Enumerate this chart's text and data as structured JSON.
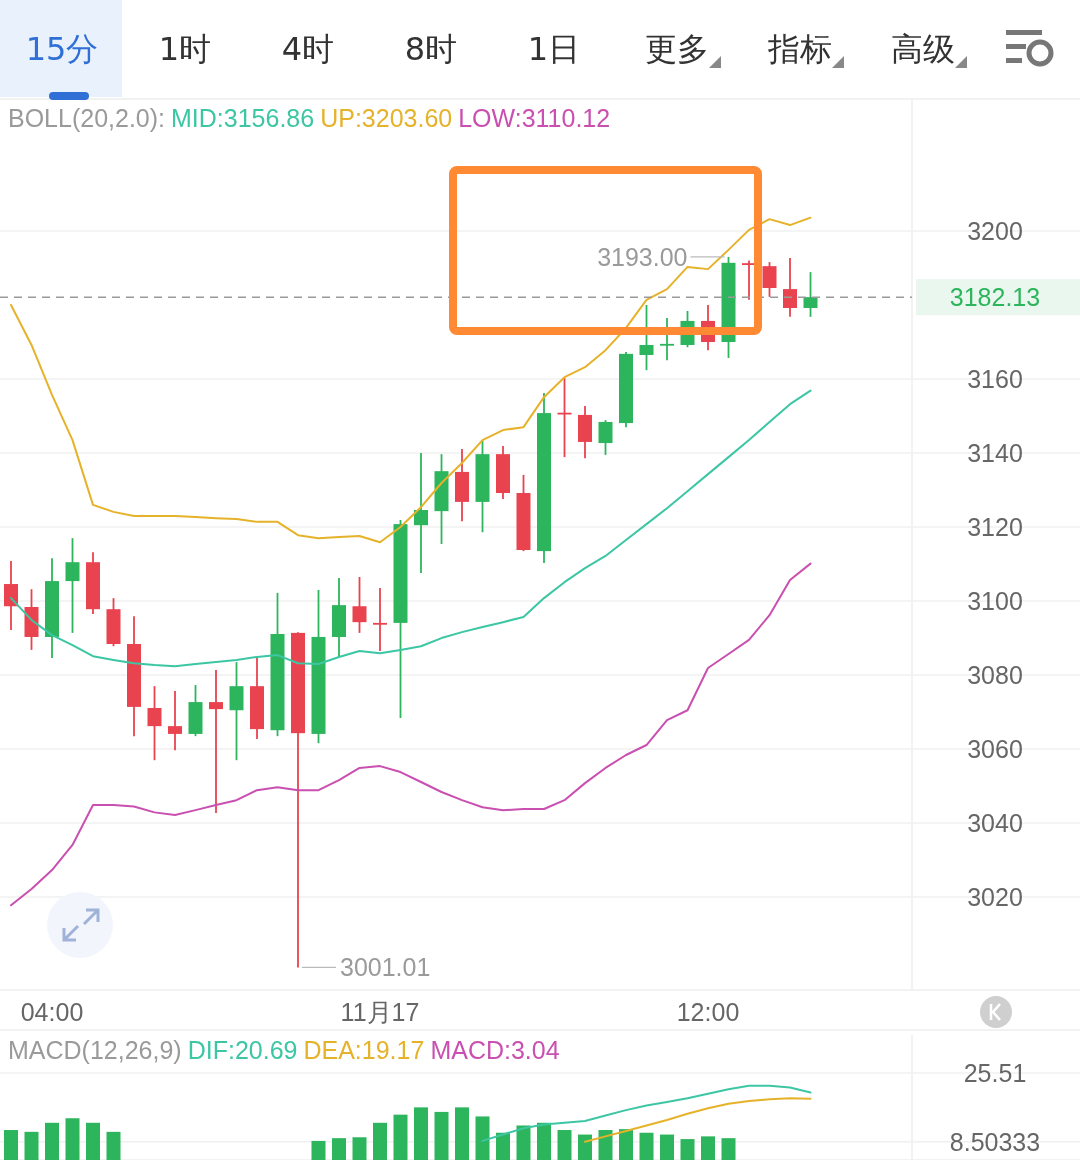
{
  "chart_data": [
    {
      "type": "candlestick",
      "categories": [
        null,
        null,
        "04:00",
        null,
        null,
        null,
        null,
        null,
        null,
        null,
        null,
        null,
        null,
        null,
        null,
        null,
        null,
        null,
        "11月17",
        null,
        null,
        null,
        null,
        null,
        null,
        null,
        null,
        null,
        null,
        null,
        null,
        null,
        null,
        null,
        "12:00",
        null,
        null,
        null,
        null,
        null
      ],
      "ohlc": [
        [
          3104.6,
          3110.8,
          3092.2,
          3098.6
        ],
        [
          3098.4,
          3103.2,
          3086.8,
          3090.3
        ],
        [
          3090.3,
          3111.6,
          3084.6,
          3105.4
        ],
        [
          3105.4,
          3117.0,
          3091.4,
          3110.5
        ],
        [
          3110.5,
          3113.2,
          3096.5,
          3097.8
        ],
        [
          3097.8,
          3100.8,
          3087.8,
          3088.4
        ],
        [
          3088.4,
          3095.9,
          3063.5,
          3071.4
        ],
        [
          3071.1,
          3077.0,
          3057.0,
          3066.2
        ],
        [
          3066.2,
          3075.7,
          3059.7,
          3064.1
        ],
        [
          3064.1,
          3077.3,
          3063.5,
          3072.7
        ],
        [
          3072.7,
          3081.4,
          3042.7,
          3070.8
        ],
        [
          3070.5,
          3083.5,
          3057.0,
          3077.0
        ],
        [
          3077.0,
          3084.9,
          3062.7,
          3065.4
        ],
        [
          3065.1,
          3102.2,
          3063.5,
          3091.1
        ],
        [
          3091.4,
          3091.6,
          3001.01,
          3064.3
        ],
        [
          3064.1,
          3103.0,
          3061.6,
          3090.3
        ],
        [
          3090.3,
          3106.2,
          3084.9,
          3098.9
        ],
        [
          3098.6,
          3106.5,
          3091.4,
          3094.3
        ],
        [
          3094.1,
          3103.5,
          3086.5,
          3094.0
        ],
        [
          3094.1,
          3121.9,
          3068.4,
          3120.8
        ],
        [
          3120.5,
          3140.0,
          3107.6,
          3124.6
        ],
        [
          3124.3,
          3139.7,
          3115.4,
          3135.1
        ],
        [
          3134.9,
          3141.1,
          3121.6,
          3126.8
        ],
        [
          3126.8,
          3143.5,
          3118.6,
          3139.7
        ],
        [
          3139.7,
          3141.9,
          3127.6,
          3129.2
        ],
        [
          3129.2,
          3134.1,
          3113.5,
          3113.8
        ],
        [
          3113.5,
          3156.2,
          3110.3,
          3150.8
        ],
        [
          3150.9,
          3160.3,
          3138.9,
          3150.8
        ],
        [
          3150.3,
          3152.7,
          3138.6,
          3143.0
        ],
        [
          3142.7,
          3148.9,
          3139.5,
          3148.4
        ],
        [
          3148.1,
          3167.3,
          3147.0,
          3166.8
        ],
        [
          3166.5,
          3180.0,
          3162.4,
          3169.2
        ],
        [
          3169.4,
          3176.5,
          3165.1,
          3169.5
        ],
        [
          3169.2,
          3178.4,
          3168.6,
          3175.7
        ],
        [
          3175.7,
          3180.0,
          3167.8,
          3170.0
        ],
        [
          3170.0,
          3193.0,
          3165.7,
          3191.4
        ],
        [
          3191.3,
          3192.0,
          3181.4,
          3191.0
        ],
        [
          3190.5,
          3191.6,
          3182.2,
          3184.6
        ],
        [
          3184.3,
          3192.7,
          3176.8,
          3179.2
        ],
        [
          3179.2,
          3188.9,
          3176.8,
          3182.13
        ]
      ],
      "colors": [
        "#e8434f",
        "#e8434f",
        "#2db55d",
        "#2db55d",
        "#e8434f",
        "#e8434f",
        "#e8434f",
        "#e8434f",
        "#e8434f",
        "#2db55d",
        "#e8434f",
        "#2db55d",
        "#e8434f",
        "#2db55d",
        "#e8434f",
        "#2db55d",
        "#2db55d",
        "#e8434f",
        "#e8434f",
        "#2db55d",
        "#2db55d",
        "#2db55d",
        "#e8434f",
        "#2db55d",
        "#e8434f",
        "#e8434f",
        "#2db55d",
        "#e8434f",
        "#e8434f",
        "#2db55d",
        "#2db55d",
        "#2db55d",
        "#2db55d",
        "#2db55d",
        "#e8434f",
        "#2db55d",
        "#e8434f",
        "#e8434f",
        "#e8434f",
        "#2db55d"
      ],
      "series": [
        {
          "name": "MID:3156.86",
          "type": "line",
          "color": "#3cc6a4",
          "values": [
            3100.8,
            3094.9,
            3090.8,
            3088.1,
            3085.1,
            3084.1,
            3083.2,
            3082.7,
            3082.4,
            3083.0,
            3083.5,
            3084.1,
            3084.9,
            3085.4,
            3083.2,
            3083.0,
            3084.9,
            3086.5,
            3085.9,
            3086.8,
            3087.8,
            3090.0,
            3091.6,
            3093.0,
            3094.3,
            3095.7,
            3100.8,
            3105.1,
            3108.9,
            3112.2,
            3116.5,
            3120.8,
            3125.1,
            3129.7,
            3134.3,
            3138.9,
            3143.5,
            3148.4,
            3153.2,
            3156.86
          ]
        },
        {
          "name": "UP:3203.60",
          "type": "line",
          "color": "#e5b22a",
          "values": [
            3180.0,
            3169.2,
            3155.7,
            3143.5,
            3126.0,
            3124.1,
            3123.0,
            3123.0,
            3123.0,
            3122.7,
            3122.4,
            3122.2,
            3121.4,
            3121.4,
            3117.8,
            3117.0,
            3117.3,
            3117.6,
            3115.9,
            3120.0,
            3125.4,
            3131.9,
            3137.3,
            3143.5,
            3146.2,
            3147.0,
            3155.1,
            3160.5,
            3163.2,
            3167.8,
            3173.8,
            3181.4,
            3184.3,
            3190.3,
            3189.7,
            3194.9,
            3200.3,
            3203.2,
            3201.6,
            3203.6
          ]
        },
        {
          "name": "LOW:3110.12",
          "type": "line",
          "color": "#c94fb0",
          "values": [
            3017.8,
            3022.2,
            3027.3,
            3034.1,
            3044.9,
            3044.9,
            3044.5,
            3042.9,
            3042.2,
            3043.5,
            3044.9,
            3046.2,
            3048.9,
            3049.7,
            3048.9,
            3048.9,
            3051.6,
            3054.9,
            3055.4,
            3053.8,
            3051.1,
            3048.4,
            3046.2,
            3044.3,
            3043.5,
            3043.8,
            3043.8,
            3046.2,
            3050.8,
            3054.9,
            3058.4,
            3061.1,
            3067.8,
            3070.5,
            3081.9,
            3085.7,
            3089.5,
            3096.2,
            3105.7,
            3110.12
          ]
        }
      ],
      "legend_title": "BOLL(20,2.0):",
      "legend": "top",
      "ylim": [
        2994.9,
        3235.4
      ],
      "yticks": [
        3020,
        3040,
        3060,
        3080,
        3100,
        3120,
        3140,
        3160,
        3200
      ],
      "grid": "y",
      "ref_lines": [
        {
          "axis": "y",
          "value": 3182.13,
          "label": "3182.13",
          "color": "#9a9a9a",
          "line_style": "dashed"
        }
      ],
      "annotations": [
        "15分",
        "1时",
        "4时",
        "8时",
        "1日",
        "更多",
        "指标",
        "高级",
        "3193.00",
        "3001.01"
      ]
    },
    {
      "type": "bar",
      "categories": [
        null,
        null,
        null,
        null,
        null,
        null,
        null,
        null,
        null,
        null,
        null,
        null,
        null,
        null,
        null,
        null,
        null,
        null,
        null,
        null,
        null,
        null,
        null,
        null,
        null,
        null,
        null,
        null,
        null,
        null,
        null,
        null,
        null,
        null,
        null,
        null,
        null,
        null,
        null,
        null
      ],
      "values": [
        11.41,
        10.96,
        13.2,
        14.32,
        13.2,
        10.96,
        null,
        null,
        null,
        null,
        null,
        null,
        null,
        null,
        null,
        8.72,
        9.4,
        9.62,
        13.2,
        15.21,
        17.01,
        15.89,
        17.01,
        14.77,
        10.74,
        12.53,
        13.2,
        11.41,
        10.29,
        11.41,
        11.63,
        10.74,
        10.29,
        9.17,
        9.84,
        9.4,
        null,
        null,
        null,
        null
      ],
      "colors": [
        "#2db55d",
        "#2db55d",
        "#2db55d",
        "#2db55d",
        "#2db55d",
        "#2db55d",
        null,
        null,
        null,
        null,
        null,
        null,
        null,
        null,
        null,
        "#2db55d",
        "#2db55d",
        "#2db55d",
        "#2db55d",
        "#2db55d",
        "#2db55d",
        "#2db55d",
        "#2db55d",
        "#2db55d",
        "#2db55d",
        "#2db55d",
        "#2db55d",
        "#2db55d",
        "#2db55d",
        "#2db55d",
        "#2db55d",
        "#2db55d",
        "#2db55d",
        "#2db55d",
        "#2db55d",
        "#2db55d",
        null,
        null,
        null,
        null
      ],
      "series": [
        {
          "name": "DIF:20.69",
          "type": "line",
          "color": "#3cc6a4",
          "values": [
            null,
            null,
            null,
            null,
            null,
            null,
            null,
            null,
            null,
            null,
            null,
            null,
            null,
            null,
            null,
            null,
            null,
            null,
            null,
            null,
            null,
            null,
            null,
            8.72,
            10.29,
            11.86,
            12.75,
            13.2,
            13.65,
            14.99,
            16.33,
            17.45,
            18.35,
            19.24,
            20.36,
            21.48,
            22.38,
            22.38,
            21.93,
            20.69
          ]
        },
        {
          "name": "DEA:19.17",
          "type": "line",
          "color": "#e5b22a",
          "values": [
            null,
            null,
            null,
            null,
            null,
            null,
            null,
            null,
            null,
            null,
            null,
            null,
            null,
            null,
            null,
            null,
            null,
            null,
            null,
            null,
            null,
            null,
            null,
            null,
            null,
            null,
            null,
            null,
            8.5,
            9.84,
            11.19,
            12.53,
            13.87,
            15.44,
            16.78,
            17.9,
            18.57,
            19.02,
            19.24,
            19.17
          ]
        }
      ],
      "legend_title": "MACD(12,26,9)",
      "legend": "top left",
      "ylim": [
        4.0,
        34.9
      ],
      "yticks": [
        25.51,
        8.50333
      ],
      "grid": "y",
      "tick_labels": "y",
      "annotations": [
        "MACD:3.04"
      ]
    }
  ]
}
